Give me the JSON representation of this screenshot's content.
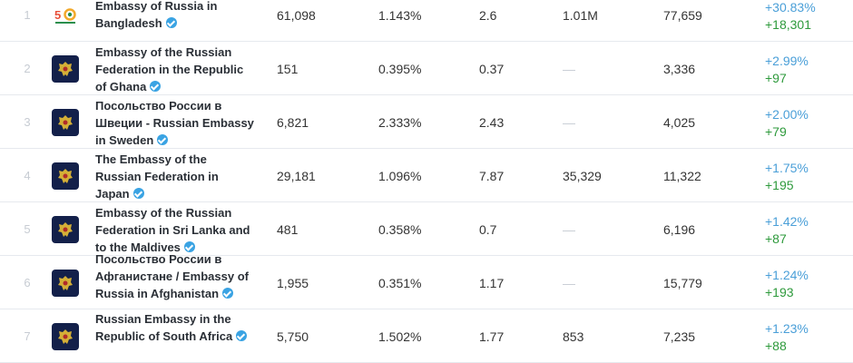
{
  "rows": [
    {
      "rank": "1",
      "icon": "anniversary-50-logo-icon",
      "name": "Embassy of Russia in Bangladesh",
      "v1": "61,098",
      "v2": "1.143%",
      "v3": "2.6",
      "v4": "1.01M",
      "v5": "77,659",
      "pct": "+30.83%",
      "abs": "+18,301"
    },
    {
      "rank": "2",
      "icon": "coat-of-arms-icon",
      "name": "Embassy of the Russian Federation in the Republic of Ghana",
      "v1": "151",
      "v2": "0.395%",
      "v3": "0.37",
      "v4": "—",
      "v5": "3,336",
      "pct": "+2.99%",
      "abs": "+97"
    },
    {
      "rank": "3",
      "icon": "coat-of-arms-icon",
      "name": "Посольство России в Швеции - Russian Embassy in Sweden",
      "v1": "6,821",
      "v2": "2.333%",
      "v3": "2.43",
      "v4": "—",
      "v5": "4,025",
      "pct": "+2.00%",
      "abs": "+79"
    },
    {
      "rank": "4",
      "icon": "coat-of-arms-icon",
      "name": "The Embassy of the Russian Federation in Japan",
      "v1": "29,181",
      "v2": "1.096%",
      "v3": "7.87",
      "v4": "35,329",
      "v5": "11,322",
      "pct": "+1.75%",
      "abs": "+195"
    },
    {
      "rank": "5",
      "icon": "coat-of-arms-icon",
      "name": "Embassy of the Russian Federation in Sri Lanka and to the Maldives",
      "v1": "481",
      "v2": "0.358%",
      "v3": "0.7",
      "v4": "—",
      "v5": "6,196",
      "pct": "+1.42%",
      "abs": "+87"
    },
    {
      "rank": "6",
      "icon": "coat-of-arms-icon",
      "name": "Посольство России в Афганистане / Embassy of Russia in Afghanistan",
      "v1": "1,955",
      "v2": "0.351%",
      "v3": "1.17",
      "v4": "—",
      "v5": "15,779",
      "pct": "+1.24%",
      "abs": "+193"
    },
    {
      "rank": "7",
      "icon": "coat-of-arms-icon",
      "name": "Russian Embassy in the Republic of South Africa",
      "v1": "5,750",
      "v2": "1.502%",
      "v3": "1.77",
      "v4": "853",
      "v5": "7,235",
      "pct": "+1.23%",
      "abs": "+88"
    }
  ],
  "colors": {
    "pct": "#4a9fd8",
    "abs": "#2e9a3c",
    "verified": "#3aa3e3",
    "avatar_bg": "#13204a"
  }
}
